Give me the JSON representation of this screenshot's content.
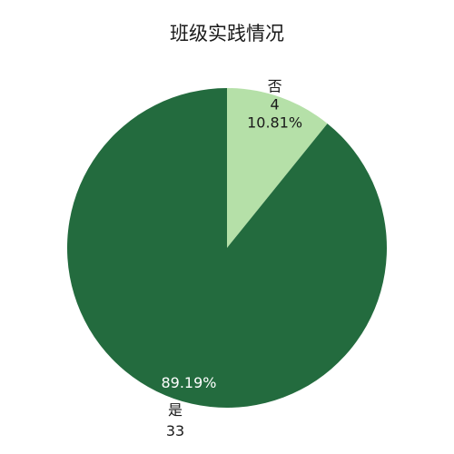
{
  "chart_data": {
    "type": "pie",
    "title": "班级实践情况",
    "slices": [
      {
        "label": "否",
        "value": 4,
        "percent": "10.81%",
        "color": "#b5e0a8"
      },
      {
        "label": "是",
        "value": 33,
        "percent": "89.19%",
        "color": "#236b3e"
      }
    ],
    "start_angle": "12 o'clock",
    "direction": "clockwise"
  }
}
